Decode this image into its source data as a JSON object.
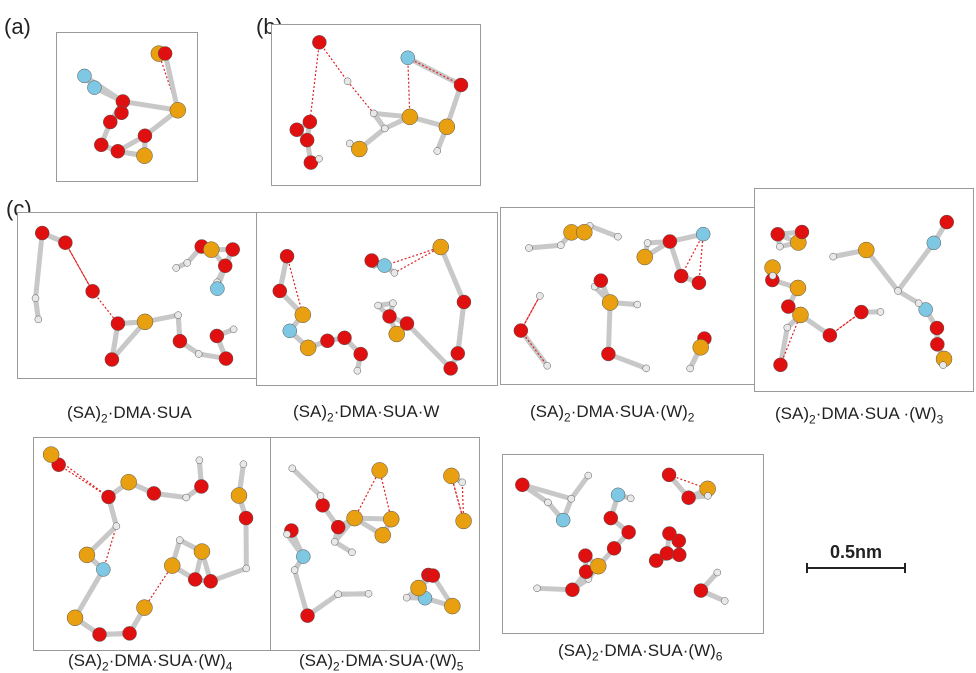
{
  "panel_labels": {
    "a": "(a)",
    "b": "(b)",
    "c": "(c)"
  },
  "captions": [
    {
      "pre": "(SA)",
      "sub1": "2",
      "mid": "·DMA·SUA",
      "sub2": "",
      "post": ""
    },
    {
      "pre": "(SA)",
      "sub1": "2",
      "mid": "·DMA·SUA·W",
      "sub2": "",
      "post": ""
    },
    {
      "pre": "(SA)",
      "sub1": "2",
      "mid": "·DMA·SUA·(W)",
      "sub2": "2",
      "post": ""
    },
    {
      "pre": "(SA)",
      "sub1": "2",
      "mid": "·DMA·SUA ·(W)",
      "sub2": "3",
      "post": ""
    },
    {
      "pre": "(SA)",
      "sub1": "2",
      "mid": "·DMA·SUA·(W)",
      "sub2": "4",
      "post": ""
    },
    {
      "pre": "(SA)",
      "sub1": "2",
      "mid": "·DMA·SUA·(W)",
      "sub2": "5",
      "post": ""
    },
    {
      "pre": "(SA)",
      "sub1": "2",
      "mid": "·DMA·SUA·(W)",
      "sub2": "6",
      "post": ""
    }
  ],
  "scale_bar": {
    "label": "0.5nm"
  },
  "colors": {
    "oxygen": "#e01010",
    "sulfur_carbon": "#e8a010",
    "nitrogen": "#7ec8e3",
    "hydrogen": "#e8e8e8",
    "bond": "#c8c8c8",
    "hbond": "#e02020"
  }
}
